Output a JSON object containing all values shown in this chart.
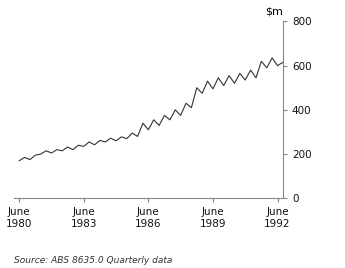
{
  "source_text": "Source: ABS 8635.0 Quarterly data",
  "ylim": [
    0,
    800
  ],
  "yticks": [
    0,
    200,
    400,
    600,
    800
  ],
  "xtick_labels": [
    "June\n1980",
    "June\n1983",
    "June\n1986",
    "June\n1989",
    "June\n1992"
  ],
  "xtick_positions": [
    1980.5,
    1983.5,
    1986.5,
    1989.5,
    1992.5
  ],
  "line_color": "#333333",
  "line_width": 0.8,
  "background_color": "#ffffff",
  "xlim": [
    1980.25,
    1992.75
  ],
  "data": [
    [
      1980.5,
      170
    ],
    [
      1980.75,
      185
    ],
    [
      1981.0,
      175
    ],
    [
      1981.25,
      195
    ],
    [
      1981.5,
      200
    ],
    [
      1981.75,
      215
    ],
    [
      1982.0,
      205
    ],
    [
      1982.25,
      220
    ],
    [
      1982.5,
      215
    ],
    [
      1982.75,
      232
    ],
    [
      1983.0,
      220
    ],
    [
      1983.25,
      240
    ],
    [
      1983.5,
      235
    ],
    [
      1983.75,
      255
    ],
    [
      1984.0,
      242
    ],
    [
      1984.25,
      262
    ],
    [
      1984.5,
      255
    ],
    [
      1984.75,
      272
    ],
    [
      1985.0,
      260
    ],
    [
      1985.25,
      278
    ],
    [
      1985.5,
      270
    ],
    [
      1985.75,
      295
    ],
    [
      1986.0,
      280
    ],
    [
      1986.25,
      340
    ],
    [
      1986.5,
      310
    ],
    [
      1986.75,
      355
    ],
    [
      1987.0,
      330
    ],
    [
      1987.25,
      375
    ],
    [
      1987.5,
      355
    ],
    [
      1987.75,
      400
    ],
    [
      1988.0,
      375
    ],
    [
      1988.25,
      430
    ],
    [
      1988.5,
      410
    ],
    [
      1988.75,
      500
    ],
    [
      1989.0,
      475
    ],
    [
      1989.25,
      530
    ],
    [
      1989.5,
      495
    ],
    [
      1989.75,
      545
    ],
    [
      1990.0,
      510
    ],
    [
      1990.25,
      555
    ],
    [
      1990.5,
      520
    ],
    [
      1990.75,
      565
    ],
    [
      1991.0,
      535
    ],
    [
      1991.25,
      580
    ],
    [
      1991.5,
      545
    ],
    [
      1991.75,
      620
    ],
    [
      1992.0,
      590
    ],
    [
      1992.25,
      635
    ],
    [
      1992.5,
      600
    ],
    [
      1992.75,
      615
    ]
  ]
}
